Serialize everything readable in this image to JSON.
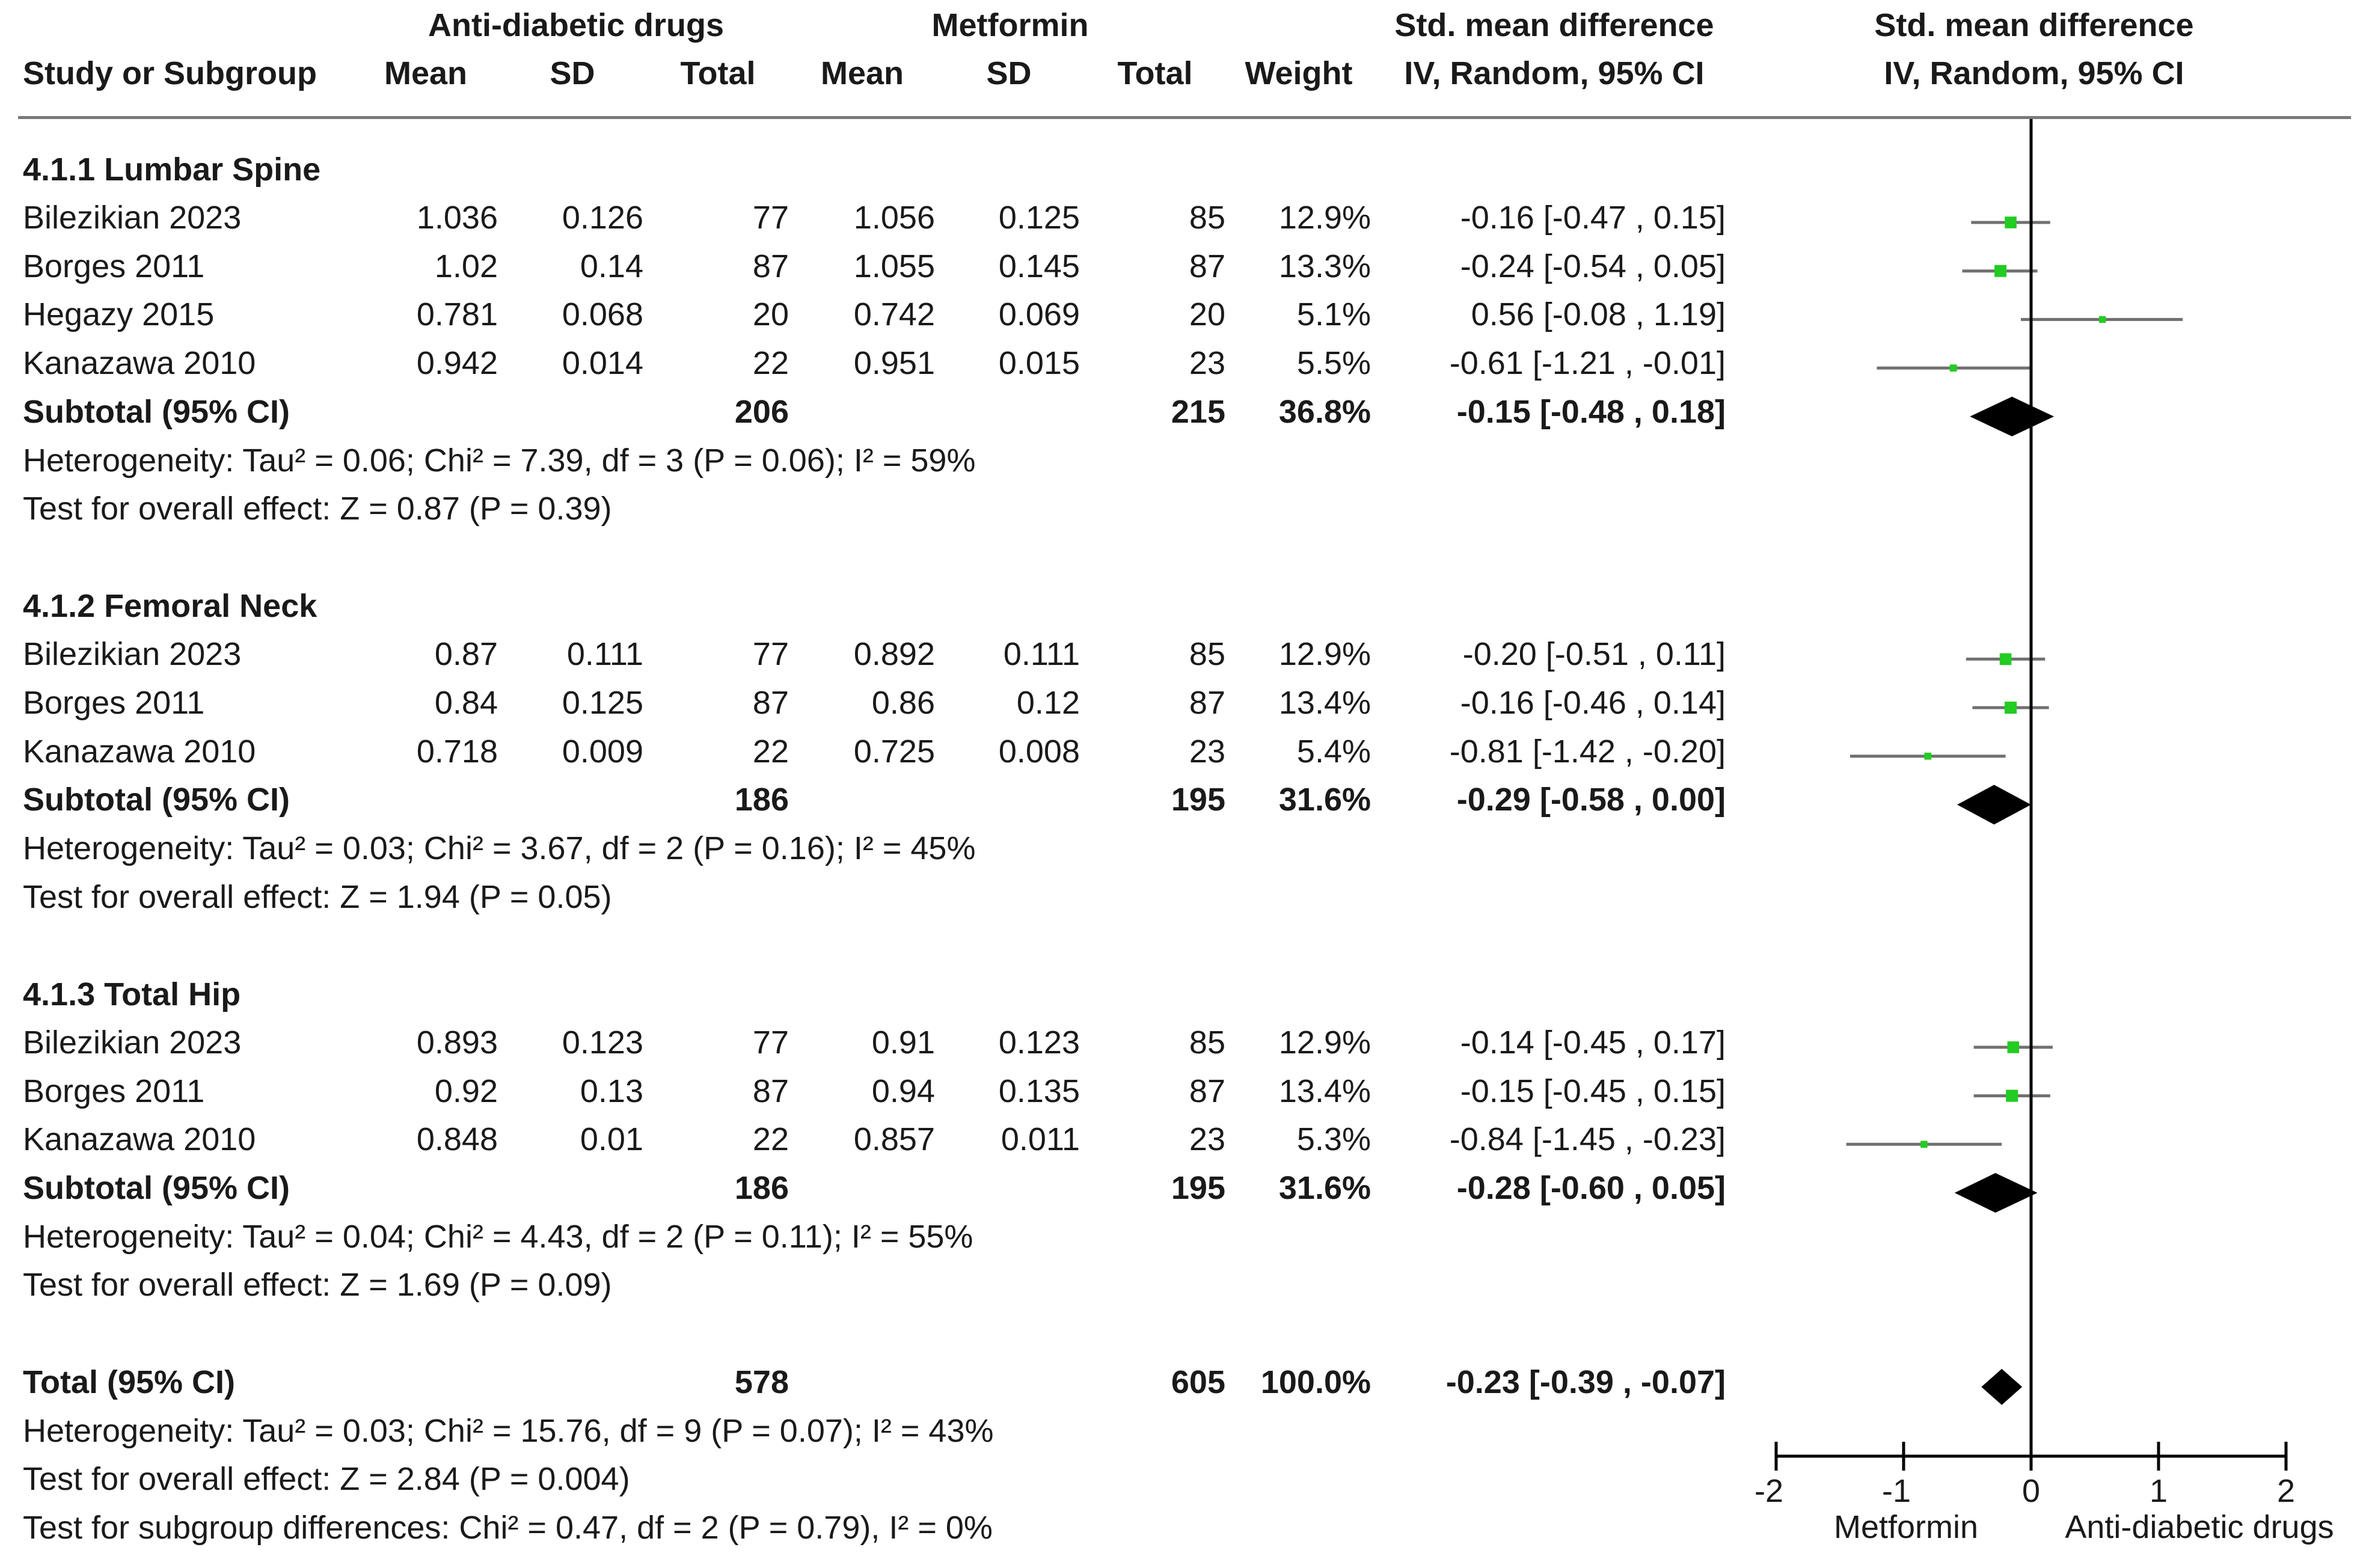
{
  "chart_data": {
    "type": "forest",
    "title": "",
    "header": {
      "group1_label": "Anti-diabetic drugs",
      "group2_label": "Metformin",
      "effect_label": "Std. mean difference",
      "effect_method": "IV, Random, 95% CI",
      "plot_label": "Std. mean difference",
      "plot_method": "IV, Random, 95% CI",
      "col_study": "Study or Subgroup",
      "col_mean": "Mean",
      "col_sd": "SD",
      "col_total": "Total",
      "col_weight": "Weight"
    },
    "subgroups": [
      {
        "title": "4.1.1 Lumbar Spine",
        "studies": [
          {
            "study": "Bilezikian 2023",
            "mean1": "1.036",
            "sd1": "0.126",
            "n1": "77",
            "mean2": "1.056",
            "sd2": "0.125",
            "n2": "85",
            "weight": "12.9%",
            "ci_text": "-0.16 [-0.47 , 0.15]",
            "est": -0.16,
            "lo": -0.47,
            "hi": 0.15
          },
          {
            "study": "Borges 2011",
            "mean1": "1.02",
            "sd1": "0.14",
            "n1": "87",
            "mean2": "1.055",
            "sd2": "0.145",
            "n2": "87",
            "weight": "13.3%",
            "ci_text": "-0.24 [-0.54 , 0.05]",
            "est": -0.24,
            "lo": -0.54,
            "hi": 0.05
          },
          {
            "study": "Hegazy 2015",
            "mean1": "0.781",
            "sd1": "0.068",
            "n1": "20",
            "mean2": "0.742",
            "sd2": "0.069",
            "n2": "20",
            "weight": "5.1%",
            "ci_text": "0.56 [-0.08 , 1.19]",
            "est": 0.56,
            "lo": -0.08,
            "hi": 1.19
          },
          {
            "study": "Kanazawa 2010",
            "mean1": "0.942",
            "sd1": "0.014",
            "n1": "22",
            "mean2": "0.951",
            "sd2": "0.015",
            "n2": "23",
            "weight": "5.5%",
            "ci_text": "-0.61 [-1.21 , -0.01]",
            "est": -0.61,
            "lo": -1.21,
            "hi": -0.01
          }
        ],
        "subtotal": {
          "label": "Subtotal (95% CI)",
          "n1": "206",
          "n2": "215",
          "weight": "36.8%",
          "ci_text": "-0.15 [-0.48 , 0.18]",
          "est": -0.15,
          "lo": -0.48,
          "hi": 0.18
        },
        "heterogeneity": "Heterogeneity: Tau² = 0.06; Chi² = 7.39, df = 3 (P = 0.06); I² = 59%",
        "overall": "Test for overall effect: Z = 0.87 (P = 0.39)"
      },
      {
        "title": "4.1.2 Femoral Neck",
        "studies": [
          {
            "study": "Bilezikian 2023",
            "mean1": "0.87",
            "sd1": "0.111",
            "n1": "77",
            "mean2": "0.892",
            "sd2": "0.111",
            "n2": "85",
            "weight": "12.9%",
            "ci_text": "-0.20 [-0.51 , 0.11]",
            "est": -0.2,
            "lo": -0.51,
            "hi": 0.11
          },
          {
            "study": "Borges 2011",
            "mean1": "0.84",
            "sd1": "0.125",
            "n1": "87",
            "mean2": "0.86",
            "sd2": "0.12",
            "n2": "87",
            "weight": "13.4%",
            "ci_text": "-0.16 [-0.46 , 0.14]",
            "est": -0.16,
            "lo": -0.46,
            "hi": 0.14
          },
          {
            "study": "Kanazawa 2010",
            "mean1": "0.718",
            "sd1": "0.009",
            "n1": "22",
            "mean2": "0.725",
            "sd2": "0.008",
            "n2": "23",
            "weight": "5.4%",
            "ci_text": "-0.81 [-1.42 , -0.20]",
            "est": -0.81,
            "lo": -1.42,
            "hi": -0.2
          }
        ],
        "subtotal": {
          "label": "Subtotal (95% CI)",
          "n1": "186",
          "n2": "195",
          "weight": "31.6%",
          "ci_text": "-0.29 [-0.58 , 0.00]",
          "est": -0.29,
          "lo": -0.58,
          "hi": 0.0
        },
        "heterogeneity": "Heterogeneity: Tau² = 0.03; Chi² = 3.67, df = 2 (P = 0.16); I² = 45%",
        "overall": "Test for overall effect: Z = 1.94 (P = 0.05)"
      },
      {
        "title": "4.1.3 Total Hip",
        "studies": [
          {
            "study": "Bilezikian 2023",
            "mean1": "0.893",
            "sd1": "0.123",
            "n1": "77",
            "mean2": "0.91",
            "sd2": "0.123",
            "n2": "85",
            "weight": "12.9%",
            "ci_text": "-0.14 [-0.45 , 0.17]",
            "est": -0.14,
            "lo": -0.45,
            "hi": 0.17
          },
          {
            "study": "Borges 2011",
            "mean1": "0.92",
            "sd1": "0.13",
            "n1": "87",
            "mean2": "0.94",
            "sd2": "0.135",
            "n2": "87",
            "weight": "13.4%",
            "ci_text": "-0.15 [-0.45 , 0.15]",
            "est": -0.15,
            "lo": -0.45,
            "hi": 0.15
          },
          {
            "study": "Kanazawa 2010",
            "mean1": "0.848",
            "sd1": "0.01",
            "n1": "22",
            "mean2": "0.857",
            "sd2": "0.011",
            "n2": "23",
            "weight": "5.3%",
            "ci_text": "-0.84 [-1.45 , -0.23]",
            "est": -0.84,
            "lo": -1.45,
            "hi": -0.23
          }
        ],
        "subtotal": {
          "label": "Subtotal (95% CI)",
          "n1": "186",
          "n2": "195",
          "weight": "31.6%",
          "ci_text": "-0.28 [-0.60 , 0.05]",
          "est": -0.28,
          "lo": -0.6,
          "hi": 0.05
        },
        "heterogeneity": "Heterogeneity: Tau² = 0.04; Chi² = 4.43, df = 2 (P = 0.11); I² = 55%",
        "overall": "Test for overall effect: Z = 1.69 (P = 0.09)"
      }
    ],
    "total": {
      "label": "Total (95% CI)",
      "n1": "578",
      "n2": "605",
      "weight": "100.0%",
      "ci_text": "-0.23 [-0.39 , -0.07]",
      "est": -0.23,
      "lo": -0.39,
      "hi": -0.07,
      "heterogeneity": "Heterogeneity: Tau² = 0.03; Chi² = 15.76, df = 9 (P = 0.07); I² = 43%",
      "overall": "Test for overall effect: Z = 2.84 (P = 0.004)",
      "subgroup_diff": "Test for subgroup differences: Chi² = 0.47, df = 2 (P = 0.79), I² = 0%"
    },
    "axis": {
      "xlim": [
        -2,
        2
      ],
      "ticks": [
        -2,
        -1,
        0,
        1,
        2
      ],
      "tick_labels": [
        "-2",
        "-1",
        "0",
        "1",
        "2"
      ],
      "left_label": "Metformin",
      "right_label": "Anti-diabetic drugs"
    },
    "colors": {
      "point": "#22cc22",
      "ci_line": "#707070",
      "diamond": "#000000",
      "axis": "#000000",
      "rule": "#7a7a7a"
    }
  }
}
